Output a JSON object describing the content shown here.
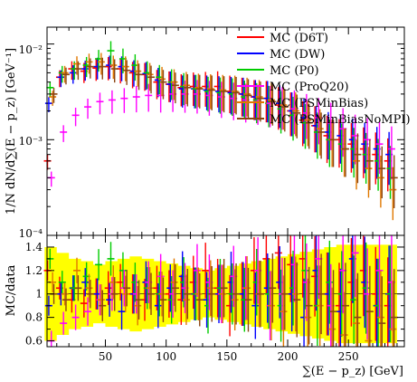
{
  "chart_data": [
    {
      "type": "scatter",
      "panel": "main",
      "xlabel": "",
      "ylabel": "1/N dN/d∑(E − p_z) [GeV⁻¹]",
      "y_scale": "log",
      "xlim": [
        2,
        296
      ],
      "ylim": [
        0.0001,
        0.015
      ],
      "y_tick_labels": [
        "10⁻⁴",
        "10⁻³",
        "10⁻²"
      ],
      "legend_placement": "top-right",
      "legend": [
        {
          "name": "MC (D6T)",
          "color": "#ff0000"
        },
        {
          "name": "MC (DW)",
          "color": "#0000ff"
        },
        {
          "name": "MC (P0)",
          "color": "#00cc00"
        },
        {
          "name": "MC (ProQ20)",
          "color": "#ff00ff"
        },
        {
          "name": "MC (PSMinBias)",
          "color": "#e07800"
        },
        {
          "name": "MC (PSMinBiasNoMPI)",
          "color": "#8b4513"
        }
      ],
      "series": [
        {
          "name": "MC (D6T)",
          "color": "#ff0000",
          "x": [
            5,
            15,
            25,
            35,
            45,
            55,
            65,
            75,
            85,
            95,
            105,
            115,
            125,
            135,
            145,
            155,
            165,
            175,
            185,
            195,
            205,
            215,
            225,
            235,
            245,
            255,
            265,
            275,
            285
          ],
          "values": [
            0.0006,
            0.0045,
            0.0055,
            0.0052,
            0.0056,
            0.0058,
            0.0055,
            0.005,
            0.0048,
            0.004,
            0.0038,
            0.0035,
            0.0036,
            0.0036,
            0.0036,
            0.0032,
            0.003,
            0.0028,
            0.0027,
            0.0023,
            0.002,
            0.0016,
            0.0014,
            0.0011,
            0.001,
            0.0009,
            0.0008,
            0.0007,
            0.0006
          ]
        },
        {
          "name": "MC (DW)",
          "color": "#0000ff",
          "x": [
            5,
            15,
            25,
            35,
            45,
            55,
            65,
            75,
            85,
            95,
            105,
            115,
            125,
            135,
            145,
            155,
            165,
            175,
            185,
            195,
            205,
            215,
            225,
            235,
            245,
            255,
            265,
            275,
            285
          ],
          "values": [
            0.0024,
            0.0045,
            0.005,
            0.0055,
            0.0058,
            0.006,
            0.0058,
            0.0052,
            0.0049,
            0.0042,
            0.0038,
            0.0034,
            0.0034,
            0.0033,
            0.0032,
            0.0031,
            0.003,
            0.0028,
            0.0027,
            0.0024,
            0.002,
            0.0017,
            0.0014,
            0.0012,
            0.0011,
            0.001,
            0.0009,
            0.0008,
            0.0007
          ]
        },
        {
          "name": "MC (P0)",
          "color": "#00cc00",
          "x": [
            5,
            15,
            25,
            35,
            45,
            55,
            65,
            75,
            85,
            95,
            105,
            115,
            125,
            135,
            145,
            155,
            165,
            175,
            185,
            195,
            205,
            215,
            225,
            235,
            245,
            255,
            265,
            275,
            285
          ],
          "values": [
            0.0035,
            0.005,
            0.0055,
            0.006,
            0.007,
            0.0085,
            0.007,
            0.006,
            0.005,
            0.0045,
            0.004,
            0.0036,
            0.0034,
            0.0032,
            0.0031,
            0.003,
            0.0028,
            0.0026,
            0.0024,
            0.0021,
            0.0018,
            0.0015,
            0.0012,
            0.001,
            0.0009,
            0.0008,
            0.0007,
            0.0006,
            0.0005
          ]
        },
        {
          "name": "MC (ProQ20)",
          "color": "#ff00ff",
          "x": [
            5,
            15,
            25,
            35,
            45,
            55,
            65,
            75,
            85,
            95,
            105,
            115,
            125,
            135,
            145,
            155,
            165,
            175,
            185,
            195,
            205,
            215,
            225,
            235,
            245,
            255,
            265,
            275,
            285
          ],
          "values": [
            0.0004,
            0.0012,
            0.0018,
            0.0022,
            0.0025,
            0.0026,
            0.0027,
            0.0028,
            0.0029,
            0.0029,
            0.003,
            0.003,
            0.003,
            0.0029,
            0.0028,
            0.0027,
            0.0026,
            0.0025,
            0.0024,
            0.0023,
            0.0021,
            0.0019,
            0.0017,
            0.0015,
            0.0013,
            0.0011,
            0.001,
            0.0009,
            0.0008
          ]
        },
        {
          "name": "MC (PSMinBias)",
          "color": "#e07800",
          "x": [
            5,
            15,
            25,
            35,
            45,
            55,
            65,
            75,
            85,
            95,
            105,
            115,
            125,
            135,
            145,
            155,
            165,
            175,
            185,
            195,
            205,
            215,
            225,
            235,
            245,
            255,
            265,
            275,
            285
          ],
          "values": [
            0.0028,
            0.005,
            0.0062,
            0.0065,
            0.0065,
            0.006,
            0.0058,
            0.0052,
            0.0048,
            0.0043,
            0.004,
            0.0037,
            0.0035,
            0.0034,
            0.0033,
            0.0032,
            0.003,
            0.0028,
            0.0026,
            0.0023,
            0.002,
            0.0016,
            0.0013,
            0.001,
            0.0008,
            0.0006,
            0.0005,
            0.0004,
            0.0003
          ]
        },
        {
          "name": "MC (PSMinBiasNoMPI)",
          "color": "#8b4513",
          "x": [
            5,
            15,
            25,
            35,
            45,
            55,
            65,
            75,
            85,
            95,
            105,
            115,
            125,
            135,
            145,
            155,
            165,
            175,
            185,
            195,
            205,
            215,
            225,
            235,
            245,
            255,
            265,
            275,
            285
          ],
          "values": [
            0.003,
            0.0048,
            0.0055,
            0.0058,
            0.0058,
            0.0055,
            0.0053,
            0.0048,
            0.0045,
            0.004,
            0.0037,
            0.0035,
            0.0034,
            0.0033,
            0.0032,
            0.0031,
            0.0029,
            0.0027,
            0.0025,
            0.0022,
            0.0019,
            0.0015,
            0.0012,
            0.001,
            0.0008,
            0.0007,
            0.0006,
            0.0005,
            0.0004
          ]
        }
      ]
    },
    {
      "type": "scatter",
      "panel": "ratio",
      "xlabel": "∑(E − p_z) [GeV]",
      "ylabel": "MC/data",
      "xlim": [
        2,
        296
      ],
      "ylim": [
        0.55,
        1.5
      ],
      "x_ticks": [
        50,
        100,
        150,
        200,
        250
      ],
      "y_ticks": [
        0.6,
        0.8,
        1,
        1.2,
        1.4
      ],
      "band": {
        "color": "#ffff00",
        "x": [
          5,
          15,
          25,
          35,
          45,
          55,
          65,
          75,
          85,
          95,
          105,
          115,
          125,
          135,
          145,
          155,
          165,
          175,
          185,
          195,
          205,
          215,
          225,
          235,
          245,
          255,
          265,
          275,
          285
        ],
        "low": [
          0.6,
          0.65,
          0.7,
          0.72,
          0.75,
          0.72,
          0.7,
          0.68,
          0.7,
          0.72,
          0.74,
          0.76,
          0.78,
          0.8,
          0.78,
          0.76,
          0.74,
          0.72,
          0.7,
          0.68,
          0.66,
          0.64,
          0.62,
          0.6,
          0.58,
          0.58,
          0.58,
          0.58,
          0.58
        ],
        "high": [
          1.4,
          1.35,
          1.3,
          1.28,
          1.25,
          1.28,
          1.3,
          1.32,
          1.3,
          1.28,
          1.26,
          1.24,
          1.22,
          1.2,
          1.22,
          1.24,
          1.26,
          1.28,
          1.3,
          1.32,
          1.34,
          1.36,
          1.38,
          1.4,
          1.42,
          1.42,
          1.42,
          1.42,
          1.42
        ]
      },
      "series": [
        {
          "name": "MC (D6T)",
          "color": "#ff0000",
          "x": [
            5,
            15,
            25,
            35,
            45,
            55,
            65,
            75,
            85,
            95,
            105,
            115,
            125,
            135,
            145,
            155,
            165,
            175,
            185,
            195,
            205,
            215,
            225,
            235,
            245,
            255,
            265,
            275,
            285
          ],
          "values": [
            1.2,
            1.05,
            0.95,
            0.92,
            1.0,
            1.05,
            1.1,
            1.0,
            0.95,
            1.05,
            1.0,
            0.95,
            1.1,
            1.2,
            1.05,
            0.9,
            1.0,
            1.2,
            1.3,
            1.35,
            1.25,
            1.3,
            1.15,
            1.0,
            0.9,
            1.1,
            1.2,
            1.0,
            0.9
          ]
        },
        {
          "name": "MC (DW)",
          "color": "#0000ff",
          "x": [
            5,
            15,
            25,
            35,
            45,
            55,
            65,
            75,
            85,
            95,
            105,
            115,
            125,
            135,
            145,
            155,
            165,
            175,
            185,
            195,
            205,
            215,
            225,
            235,
            245,
            255,
            265,
            275,
            285
          ],
          "values": [
            0.9,
            1.0,
            1.05,
            1.1,
            1.0,
            0.95,
            0.85,
            1.0,
            1.1,
            0.9,
            1.05,
            1.15,
            1.0,
            0.95,
            1.0,
            1.1,
            1.0,
            0.9,
            1.05,
            1.1,
            1.0,
            0.8,
            1.2,
            1.0,
            0.85,
            1.3,
            1.1,
            0.9,
            1.0
          ]
        },
        {
          "name": "MC (P0)",
          "color": "#00cc00",
          "x": [
            5,
            15,
            25,
            35,
            45,
            55,
            65,
            75,
            85,
            95,
            105,
            115,
            125,
            135,
            145,
            155,
            165,
            175,
            185,
            195,
            205,
            215,
            225,
            235,
            245,
            255,
            265,
            275,
            285
          ],
          "values": [
            1.3,
            1.1,
            1.05,
            1.15,
            1.25,
            1.3,
            1.2,
            1.1,
            1.05,
            1.0,
            0.95,
            1.1,
            1.0,
            0.9,
            1.05,
            1.0,
            0.95,
            1.1,
            1.0,
            0.9,
            1.05,
            1.2,
            0.9,
            1.1,
            1.0,
            0.95,
            1.05,
            0.9,
            1.0
          ]
        },
        {
          "name": "MC (ProQ20)",
          "color": "#ff00ff",
          "x": [
            5,
            15,
            25,
            35,
            45,
            55,
            65,
            75,
            85,
            95,
            105,
            115,
            125,
            135,
            145,
            155,
            165,
            175,
            185,
            195,
            205,
            215,
            225,
            235,
            245,
            255,
            265,
            275,
            285
          ],
          "values": [
            0.6,
            0.75,
            0.8,
            0.85,
            0.95,
            1.0,
            1.05,
            1.0,
            1.1,
            1.15,
            1.0,
            1.05,
            1.2,
            1.1,
            1.0,
            1.15,
            1.05,
            1.2,
            0.9,
            1.0,
            1.25,
            1.1,
            1.3,
            0.9,
            1.2,
            1.35,
            1.0,
            1.2,
            1.1
          ]
        },
        {
          "name": "MC (PSMinBias)",
          "color": "#e07800",
          "x": [
            5,
            15,
            25,
            35,
            45,
            55,
            65,
            75,
            85,
            95,
            105,
            115,
            125,
            135,
            145,
            155,
            165,
            175,
            185,
            195,
            205,
            215,
            225,
            235,
            245,
            255,
            265,
            275,
            285
          ],
          "values": [
            1.1,
            1.0,
            1.2,
            1.05,
            0.95,
            1.1,
            1.0,
            0.9,
            1.05,
            1.0,
            1.1,
            0.95,
            1.0,
            1.05,
            1.0,
            0.95,
            1.05,
            1.0,
            0.9,
            0.85,
            1.0,
            0.8,
            0.9,
            0.7,
            0.65,
            0.75,
            0.6,
            0.8,
            0.7
          ]
        },
        {
          "name": "MC (PSMinBiasNoMPI)",
          "color": "#8b4513",
          "x": [
            5,
            15,
            25,
            35,
            45,
            55,
            65,
            75,
            85,
            95,
            105,
            115,
            125,
            135,
            145,
            155,
            165,
            175,
            185,
            195,
            205,
            215,
            225,
            235,
            245,
            255,
            265,
            275,
            285
          ],
          "values": [
            1.0,
            0.95,
            1.05,
            1.0,
            0.9,
            1.0,
            1.05,
            0.95,
            1.0,
            0.95,
            1.05,
            1.0,
            0.95,
            1.0,
            1.05,
            1.0,
            0.95,
            1.0,
            1.05,
            1.0,
            0.95,
            0.9,
            1.0,
            0.85,
            0.9,
            0.8,
            0.85,
            0.75,
            0.8
          ]
        }
      ]
    }
  ]
}
